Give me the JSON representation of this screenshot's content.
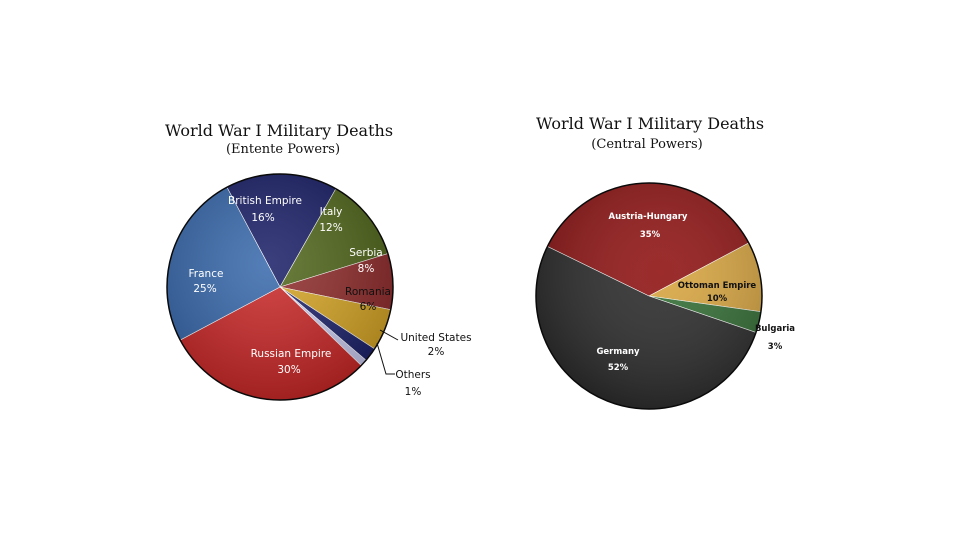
{
  "chart_data": [
    {
      "type": "pie",
      "title": "World War I Military Deaths",
      "subtitle": "(Entente Powers)",
      "slices": [
        {
          "label": "British Empire",
          "pct_label": "16%",
          "value": 16,
          "color": "#101560"
        },
        {
          "label": "Italy",
          "pct_label": "12%",
          "value": 12,
          "color": "#4a6112"
        },
        {
          "label": "Serbia",
          "pct_label": "8%",
          "value": 8,
          "color": "#8c2424"
        },
        {
          "label": "Romania",
          "pct_label": "6%",
          "value": 6,
          "color": "#d5a21e"
        },
        {
          "label": "United States",
          "pct_label": "2%",
          "value": 2,
          "color": "#151a66"
        },
        {
          "label": "Others",
          "pct_label": "1%",
          "value": 1,
          "color": "#c8c8f0"
        },
        {
          "label": "Russian Empire",
          "pct_label": "30%",
          "value": 30,
          "color": "#c81f1f"
        },
        {
          "label": "France",
          "pct_label": "25%",
          "value": 25,
          "color": "#2f62a8"
        }
      ]
    },
    {
      "type": "pie",
      "title": "World War I Military Deaths",
      "subtitle": "(Central Powers)",
      "slices": [
        {
          "label": "Austria-Hungary",
          "pct_label": "35%",
          "value": 35,
          "color": "#8e0f0f"
        },
        {
          "label": "Ottoman Empire",
          "pct_label": "10%",
          "value": 10,
          "color": "#d8a43c"
        },
        {
          "label": "Bulgaria",
          "pct_label": "3%",
          "value": 3,
          "color": "#2e6b30"
        },
        {
          "label": "Germany",
          "pct_label": "52%",
          "value": 52,
          "color": "#262626"
        }
      ]
    }
  ]
}
